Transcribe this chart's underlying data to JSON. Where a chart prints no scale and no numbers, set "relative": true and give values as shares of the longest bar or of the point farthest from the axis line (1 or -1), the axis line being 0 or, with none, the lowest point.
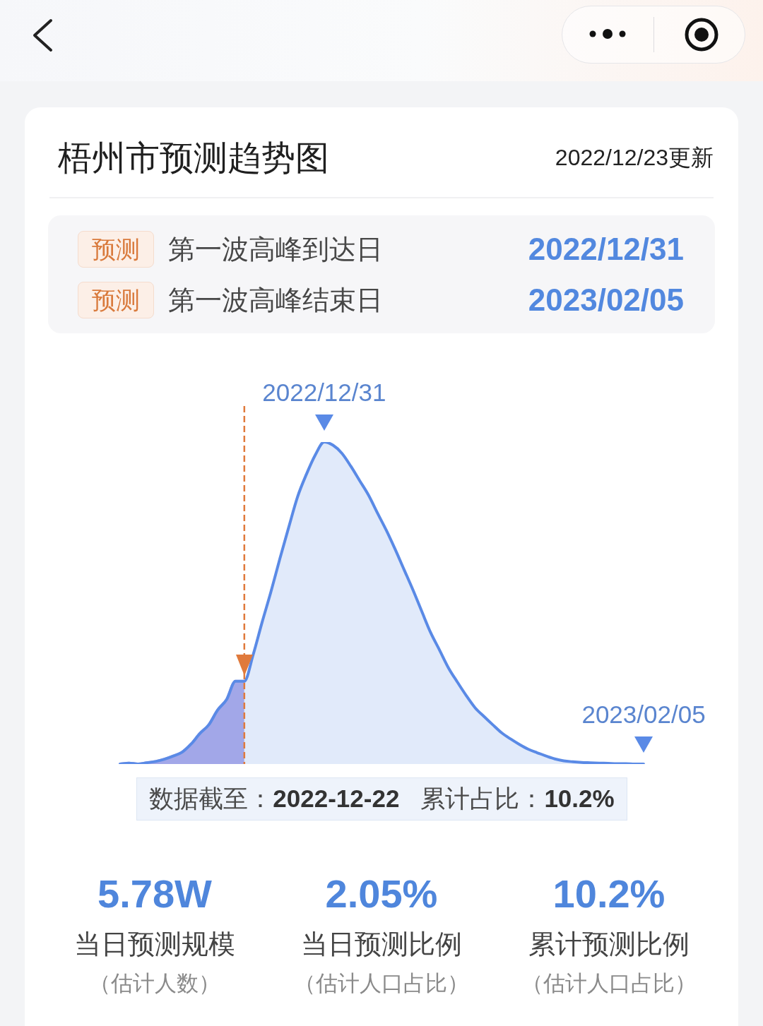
{
  "chart_data": {
    "type": "area",
    "title": "梧州市预测趋势图",
    "subtitle": "2022/12/23更新",
    "categories": [
      null,
      null,
      null,
      null,
      null,
      null,
      null,
      null,
      null,
      null,
      null,
      null,
      null,
      null,
      null,
      null,
      null,
      null,
      null,
      null,
      null,
      null,
      null,
      null,
      null,
      null,
      null,
      null,
      null,
      null,
      null,
      null,
      null,
      null,
      null,
      null,
      null,
      null,
      null,
      null,
      null,
      null,
      null,
      null,
      null,
      null,
      null,
      null,
      null,
      null,
      null,
      null,
      null,
      null,
      null,
      null,
      null,
      null,
      null,
      null
    ],
    "series": [
      {
        "color": "#b2aeea",
        "values": [
          0,
          0.003,
          0,
          0.004,
          0.008,
          0.015,
          0.025,
          0.037,
          0.062,
          0.095,
          0.122,
          0.168,
          0.2,
          0.257,
          0.257,
          null,
          null,
          null,
          null,
          null,
          null,
          null,
          null,
          null,
          null,
          null,
          null,
          null,
          null,
          null,
          null,
          null,
          null,
          null,
          null,
          null,
          null,
          null,
          null,
          null,
          null,
          null,
          null,
          null,
          null,
          null,
          null,
          null,
          null,
          null,
          null,
          null,
          null,
          null,
          null,
          null,
          null,
          null,
          null,
          null
        ]
      },
      {
        "color": "#5a8ae6",
        "values": [
          0,
          0.003,
          0,
          0.004,
          0.008,
          0.015,
          0.025,
          0.037,
          0.062,
          0.095,
          0.122,
          0.168,
          0.2,
          0.257,
          0.257,
          0.34,
          0.44,
          0.535,
          0.637,
          0.735,
          0.83,
          0.9,
          0.96,
          1,
          0.99,
          0.965,
          0.925,
          0.88,
          0.835,
          0.78,
          0.726,
          0.667,
          0.604,
          0.541,
          0.474,
          0.408,
          0.354,
          0.299,
          0.255,
          0.213,
          0.175,
          0.148,
          0.122,
          0.097,
          0.078,
          0.061,
          0.046,
          0.035,
          0.025,
          0.016,
          0.01,
          0.007,
          0.005,
          0.004,
          0.003,
          0.002,
          0.001,
          0.001,
          0,
          0
        ]
      }
    ],
    "relative": true,
    "ref_lines": [
      {
        "axis": "x",
        "color": "#e07a3c",
        "line_style": "dashed"
      }
    ],
    "annotations": [
      "预测",
      "第一波高峰到达日",
      "2022/12/31",
      "预测",
      "第一波高峰结束日",
      "2023/02/05",
      "数据截至：2022-12-22",
      "累计占比：10.2%",
      "5.78W",
      "当日预测规模",
      "（估计人数）",
      "2.05%",
      "当日预测比例",
      "（估计人口占比）",
      "10.2%",
      "累计预测比例",
      "（估计人口占比）",
      {
        "text": "2022/12/31",
        "y": 1
      },
      {
        "text": "2023/02/05",
        "y": 0
      }
    ]
  }
}
